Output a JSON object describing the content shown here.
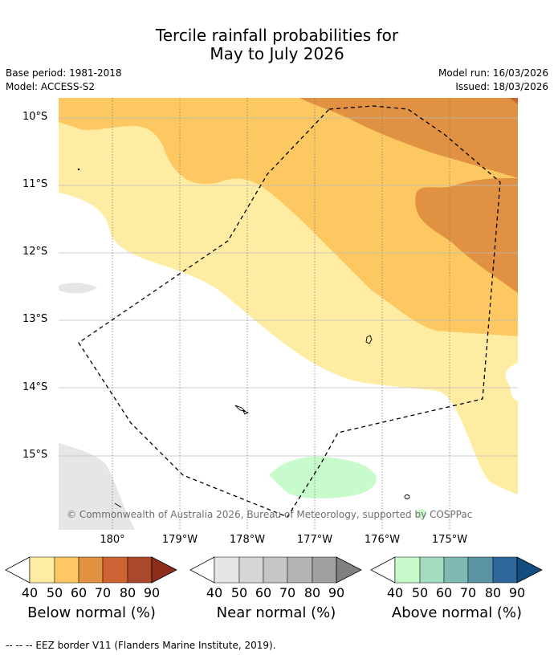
{
  "title": {
    "line1": "Tercile rainfall probabilities for",
    "line2": "May to July 2026"
  },
  "meta": {
    "base_period": "Base period: 1981-2018",
    "model": "Model: ACCESS-S2",
    "model_run": "Model run: 16/03/2026",
    "issued": "Issued: 18/03/2026"
  },
  "map": {
    "y_ticks": [
      "10°S",
      "11°S",
      "12°S",
      "13°S",
      "14°S",
      "15°S"
    ],
    "x_ticks": [
      "180°",
      "179°W",
      "178°W",
      "177°W",
      "176°W",
      "175°W"
    ],
    "copyright": "© Commonwealth of Australia 2026, Bureau of Meteorology, supported by COSPPac"
  },
  "colorbars": [
    {
      "title": "Below normal (%)",
      "ticks": [
        "40",
        "50",
        "60",
        "70",
        "80",
        "90"
      ],
      "colors": [
        "#ffeca3",
        "#fdc861",
        "#e09142",
        "#cd6232",
        "#a9482a",
        "#8c2e1b"
      ]
    },
    {
      "title": "Near normal (%)",
      "ticks": [
        "40",
        "50",
        "60",
        "70",
        "80",
        "90"
      ],
      "colors": [
        "#e6e6e6",
        "#d6d6d6",
        "#c6c6c6",
        "#b4b4b4",
        "#a0a0a0",
        "#808080"
      ]
    },
    {
      "title": "Above normal (%)",
      "ticks": [
        "40",
        "50",
        "60",
        "70",
        "80",
        "90"
      ],
      "colors": [
        "#c8fbcb",
        "#a2dbbf",
        "#7fb9b3",
        "#5a93a2",
        "#2f6699",
        "#124d7d"
      ]
    }
  ],
  "footnote": "--  --  -- EEZ border V11 (Flanders Marine Institute, 2019).",
  "colors": {
    "below_40": "#ffeca3",
    "below_50": "#fdc861",
    "below_60": "#e09142",
    "near_40": "#e6e6e6",
    "above_40": "#c8fbcb"
  }
}
